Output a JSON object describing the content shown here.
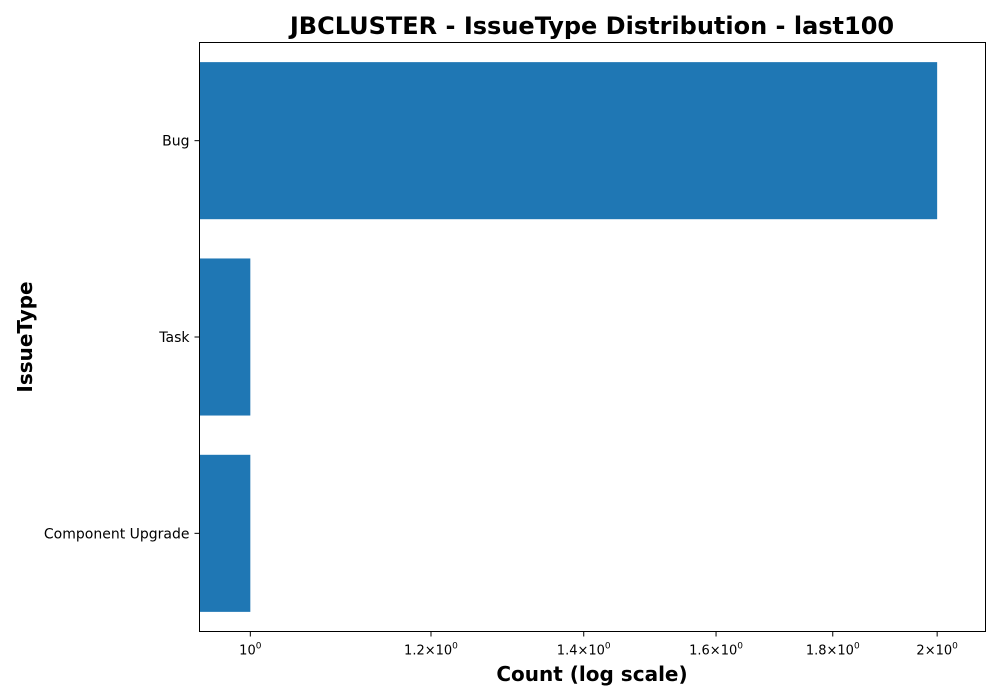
{
  "chart_data": {
    "type": "bar",
    "orientation": "horizontal",
    "title": "JBCLUSTER - IssueType Distribution - last100",
    "xlabel": "Count (log scale)",
    "ylabel": "IssueType",
    "categories": [
      "Bug",
      "Task",
      "Component  Upgrade"
    ],
    "values": [
      2,
      1,
      1
    ],
    "x_scale": "log",
    "xlim": [
      0.95,
      2.1
    ],
    "x_ticks": [
      {
        "value": 1.0,
        "mantissa": "",
        "base": "10",
        "exp": "0"
      },
      {
        "value": 1.2,
        "mantissa": "1.2×",
        "base": "10",
        "exp": "0"
      },
      {
        "value": 1.4,
        "mantissa": "1.4×",
        "base": "10",
        "exp": "0"
      },
      {
        "value": 1.6,
        "mantissa": "1.6×",
        "base": "10",
        "exp": "0"
      },
      {
        "value": 1.8,
        "mantissa": "1.8×",
        "base": "10",
        "exp": "0"
      },
      {
        "value": 2.0,
        "mantissa": "2×",
        "base": "10",
        "exp": "0"
      }
    ],
    "bar_color": "#1f77b4",
    "grid": false,
    "legend": false
  }
}
